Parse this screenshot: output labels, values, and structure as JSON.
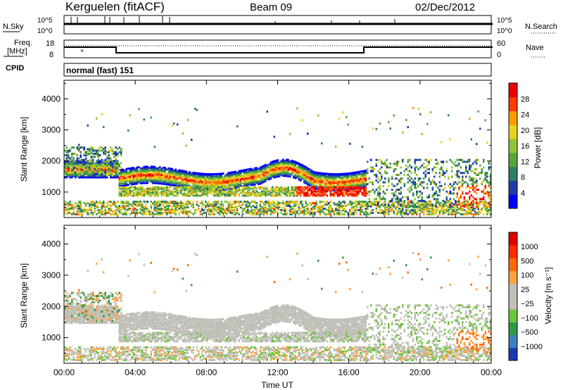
{
  "header": {
    "station": "Kerguelen (fitACF)",
    "beam": "Beam 09",
    "date": "02/Dec/2012"
  },
  "sky_panel": {
    "label": "N.Sky",
    "left_ticks": [
      "10^5",
      "10^0"
    ],
    "right_label": "N.Search",
    "right_ticks": [
      "10^5",
      "10^0"
    ]
  },
  "freq_panel": {
    "label_line1": "Freq.",
    "label_line2": "[MHz]",
    "left_ticks": [
      "18",
      "8"
    ],
    "right_label": "Nave",
    "right_ticks": [
      "60",
      "0"
    ]
  },
  "cpid_panel": {
    "label": "CPID",
    "text": "normal (fast) 151"
  },
  "chart_data": [
    {
      "type": "heatmap",
      "title": "",
      "ylabel": "Slant Range [km]",
      "ylim": [
        180,
        4600
      ],
      "yticks": [
        "4000",
        "3000",
        "2000",
        "1000"
      ],
      "colorbar_label": "Power [dB]",
      "colorbar_ticks": [
        "28",
        "24",
        "20",
        "16",
        "12",
        "8",
        "4"
      ],
      "colors": [
        "#0000ff",
        "#1e3da8",
        "#2f7f62",
        "#55a63a",
        "#8fc43a",
        "#e8d020",
        "#ff9a00",
        "#ff3a00",
        "#ee0000"
      ]
    },
    {
      "type": "heatmap",
      "title": "",
      "xlabel": "Time UT",
      "ylabel": "Slant Range [km]",
      "ylim": [
        180,
        4600
      ],
      "yticks": [
        "4000",
        "3000",
        "2000",
        "1000"
      ],
      "xticks": [
        "00:00",
        "04:00",
        "08:00",
        "12:00",
        "16:00",
        "20:00",
        "00:00"
      ],
      "colorbar_label": "Velocity [m s⁻¹]",
      "colorbar_ticks": [
        "1000",
        "500",
        "100",
        "25",
        "−25",
        "−100",
        "−500",
        "−1000"
      ],
      "colors": [
        "#1c3ab0",
        "#3f7fbf",
        "#2f9a45",
        "#6cc63a",
        "#c0c0b8",
        "#c0c0b8",
        "#ffa040",
        "#ff6a00",
        "#ff2a00",
        "#e00000"
      ]
    }
  ]
}
